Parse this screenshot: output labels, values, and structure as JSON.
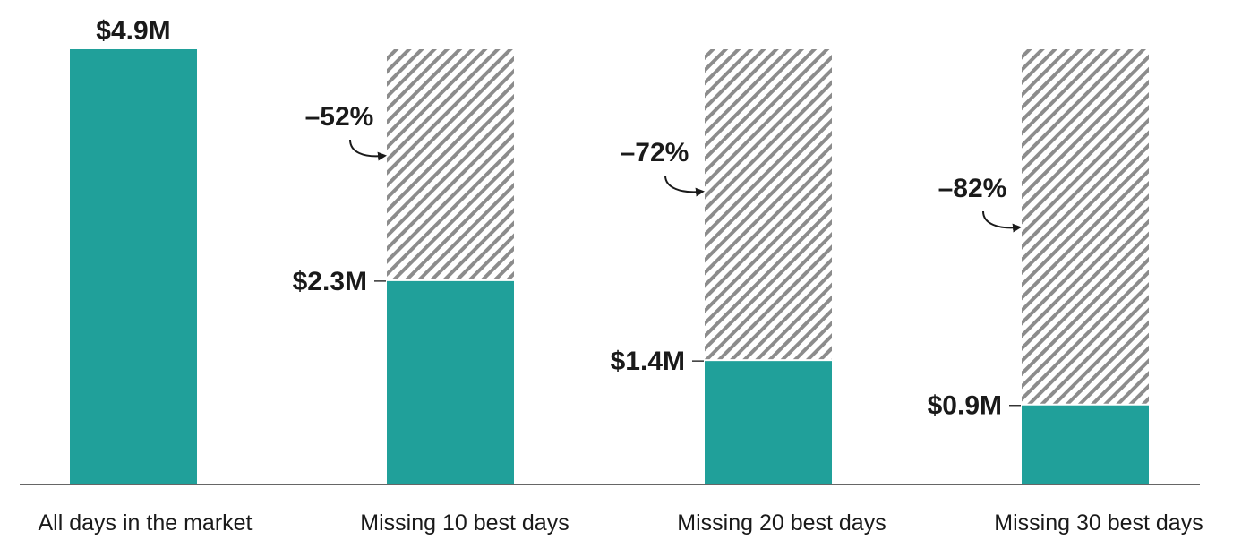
{
  "chart_data": {
    "type": "bar",
    "categories": [
      "All days in the market",
      "Missing 10 best days",
      "Missing 20 best days",
      "Missing 30 best days"
    ],
    "values": [
      4.9,
      2.3,
      1.4,
      0.9
    ],
    "value_labels": [
      "$4.9M",
      "$2.3M",
      "$1.4M",
      "$0.9M"
    ],
    "reference_value": 4.9,
    "loss_labels": [
      "",
      "–52%",
      "–72%",
      "–82%"
    ],
    "ylim": [
      0,
      4.9
    ],
    "grid": false,
    "legend": "none",
    "title": "",
    "xlabel": "",
    "ylabel": ""
  },
  "colors": {
    "bar": "#20a09a",
    "hatch_stripe": "#8c8c8c",
    "text": "#1a1a1a",
    "axis": "#333333"
  }
}
